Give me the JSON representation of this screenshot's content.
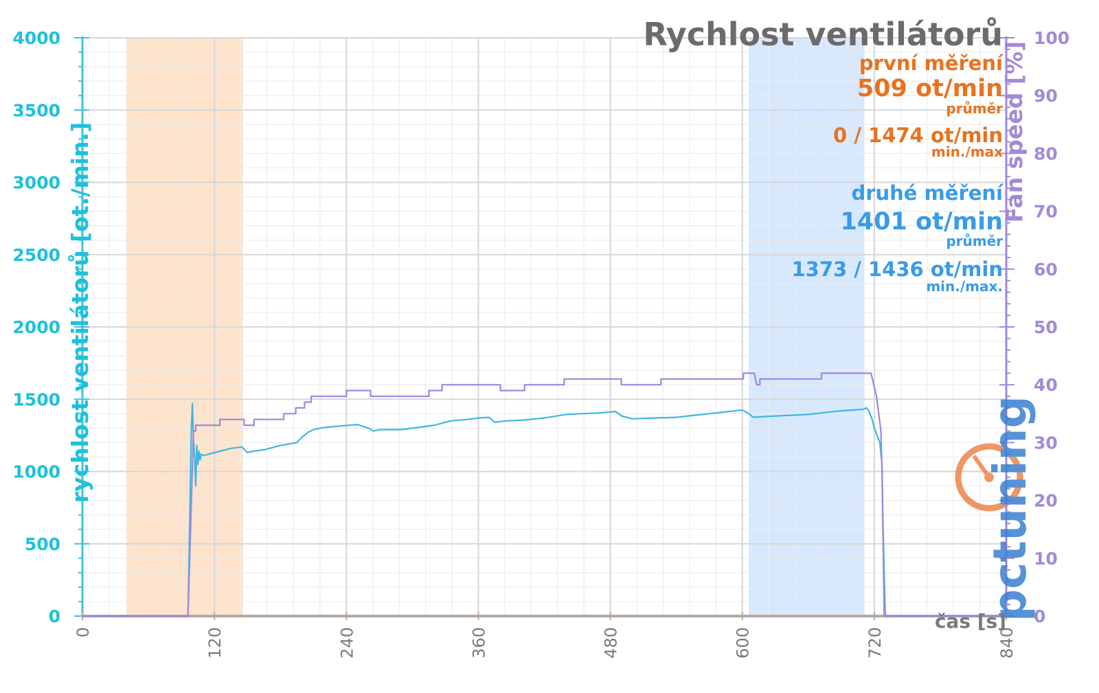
{
  "chart_data": {
    "type": "line",
    "title": "Rychlost ventilátorů",
    "xlabel": "čas [s]",
    "ylabel_left": "rychlost ventilátorů [ot./min.]",
    "ylabel_right": "Fan speed [%]",
    "xlim": [
      0,
      840
    ],
    "ylim_left": [
      0,
      4000
    ],
    "ylim_right": [
      0,
      100
    ],
    "x_ticks": [
      "0",
      "120",
      "240",
      "360",
      "480",
      "600",
      "720",
      "840"
    ],
    "y_left_ticks": [
      "0",
      "500",
      "1000",
      "1500",
      "2000",
      "2500",
      "3000",
      "3500",
      "4000"
    ],
    "y_right_ticks": [
      "0",
      "10",
      "20",
      "30",
      "40",
      "50",
      "60",
      "70",
      "80",
      "90",
      "100"
    ],
    "grid": true,
    "shaded_regions": [
      {
        "label": "první měření",
        "x_start": 40,
        "x_end": 146,
        "color": "#fde3cc"
      },
      {
        "label": "druhé měření",
        "x_start": 606,
        "x_end": 711,
        "color": "#d7e8fd"
      }
    ],
    "series": [
      {
        "axis": "left",
        "color": "#3cb8e0",
        "x": [
          0,
          96,
          99,
          100,
          101,
          102,
          103,
          104,
          105,
          106,
          107,
          108,
          110,
          115,
          125,
          135,
          145,
          150,
          155,
          165,
          180,
          195,
          200,
          205,
          210,
          220,
          235,
          250,
          260,
          265,
          270,
          290,
          320,
          335,
          350,
          360,
          370,
          375,
          385,
          400,
          420,
          440,
          470,
          485,
          490,
          500,
          520,
          540,
          570,
          600,
          605,
          610,
          620,
          660,
          690,
          710,
          713,
          715,
          718,
          720,
          725,
          727,
          728,
          730,
          845
        ],
        "y": [
          0,
          0,
          1280,
          1470,
          1220,
          1100,
          900,
          1180,
          1050,
          1140,
          1080,
          1120,
          1110,
          1120,
          1140,
          1160,
          1170,
          1130,
          1140,
          1150,
          1180,
          1200,
          1240,
          1270,
          1290,
          1305,
          1315,
          1325,
          1300,
          1280,
          1290,
          1290,
          1320,
          1350,
          1360,
          1370,
          1375,
          1340,
          1350,
          1355,
          1370,
          1395,
          1405,
          1415,
          1385,
          1365,
          1370,
          1375,
          1400,
          1425,
          1405,
          1375,
          1380,
          1395,
          1420,
          1430,
          1440,
          1420,
          1360,
          1300,
          1200,
          1050,
          600,
          0,
          0
        ]
      },
      {
        "axis": "right",
        "color": "#9b88e0",
        "x": [
          0,
          96,
          101,
          103,
          103,
          107,
          107,
          122,
          122,
          125,
          125,
          147,
          147,
          156,
          156,
          162,
          162,
          183,
          183,
          194,
          194,
          202,
          202,
          208,
          208,
          240,
          240,
          262,
          262,
          315,
          315,
          327,
          327,
          380,
          380,
          402,
          402,
          438,
          438,
          490,
          490,
          526,
          526,
          556,
          556,
          601,
          601,
          611,
          613,
          616,
          616,
          672,
          672,
          717,
          722,
          726,
          727,
          729,
          845
        ],
        "y": [
          0,
          0,
          32,
          32,
          33,
          33,
          33,
          33,
          33,
          33,
          34,
          34,
          33,
          33,
          34,
          34,
          34,
          34,
          35,
          35,
          36,
          36,
          37,
          37,
          38,
          38,
          39,
          39,
          38,
          38,
          39,
          39,
          40,
          40,
          39,
          39,
          40,
          40,
          41,
          41,
          40,
          40,
          41,
          41,
          41,
          41,
          42,
          42,
          40,
          40,
          41,
          41,
          42,
          42,
          38,
          32,
          25,
          0,
          0
        ]
      }
    ],
    "annotations": {
      "first": {
        "label": "první měření",
        "avg": "509 ot/min",
        "avg_label": "průměr",
        "minmax": "0 / 1474 ot/min",
        "minmax_label": "min./max",
        "color": "#e8731e"
      },
      "second": {
        "label": "druhé měření",
        "avg": "1401 ot/min",
        "avg_label": "průměr",
        "minmax": "1373 / 1436 ot/min",
        "minmax_label": "min./max.",
        "color": "#3a9be6"
      }
    },
    "watermark": "pctuning"
  }
}
